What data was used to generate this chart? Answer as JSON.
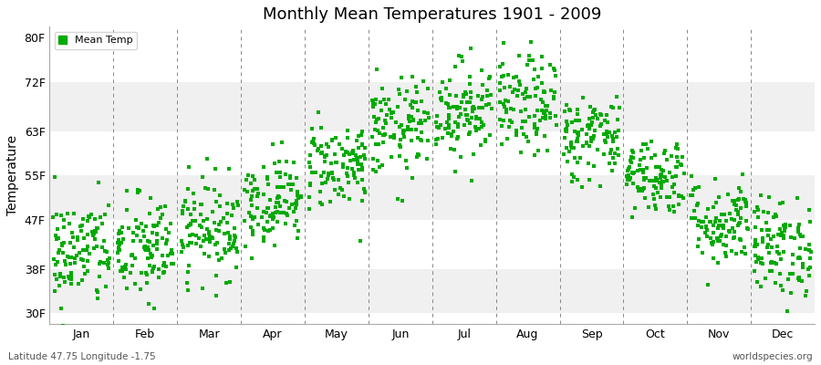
{
  "title": "Monthly Mean Temperatures 1901 - 2009",
  "ylabel": "Temperature",
  "xlabel_labels": [
    "Jan",
    "Feb",
    "Mar",
    "Apr",
    "May",
    "Jun",
    "Jul",
    "Aug",
    "Sep",
    "Oct",
    "Nov",
    "Dec"
  ],
  "ytick_labels": [
    "30F",
    "38F",
    "47F",
    "55F",
    "63F",
    "72F",
    "80F"
  ],
  "ytick_values": [
    30,
    38,
    47,
    55,
    63,
    72,
    80
  ],
  "ylim": [
    28,
    82
  ],
  "dot_color": "#00aa00",
  "bg_color": "#ffffff",
  "band_colors": [
    "#f0f0f0",
    "#ffffff"
  ],
  "legend_label": "Mean Temp",
  "footer_left": "Latitude 47.75 Longitude -1.75",
  "footer_right": "worldspecies.org",
  "monthly_mean_F": [
    41.0,
    41.5,
    45.5,
    50.5,
    57.0,
    63.5,
    67.0,
    67.5,
    62.0,
    55.0,
    46.5,
    42.0
  ],
  "monthly_std_F": [
    5.0,
    5.0,
    4.5,
    4.0,
    4.0,
    4.5,
    4.5,
    4.5,
    4.0,
    3.5,
    4.0,
    4.5
  ],
  "n_years": 109,
  "seed": 42
}
